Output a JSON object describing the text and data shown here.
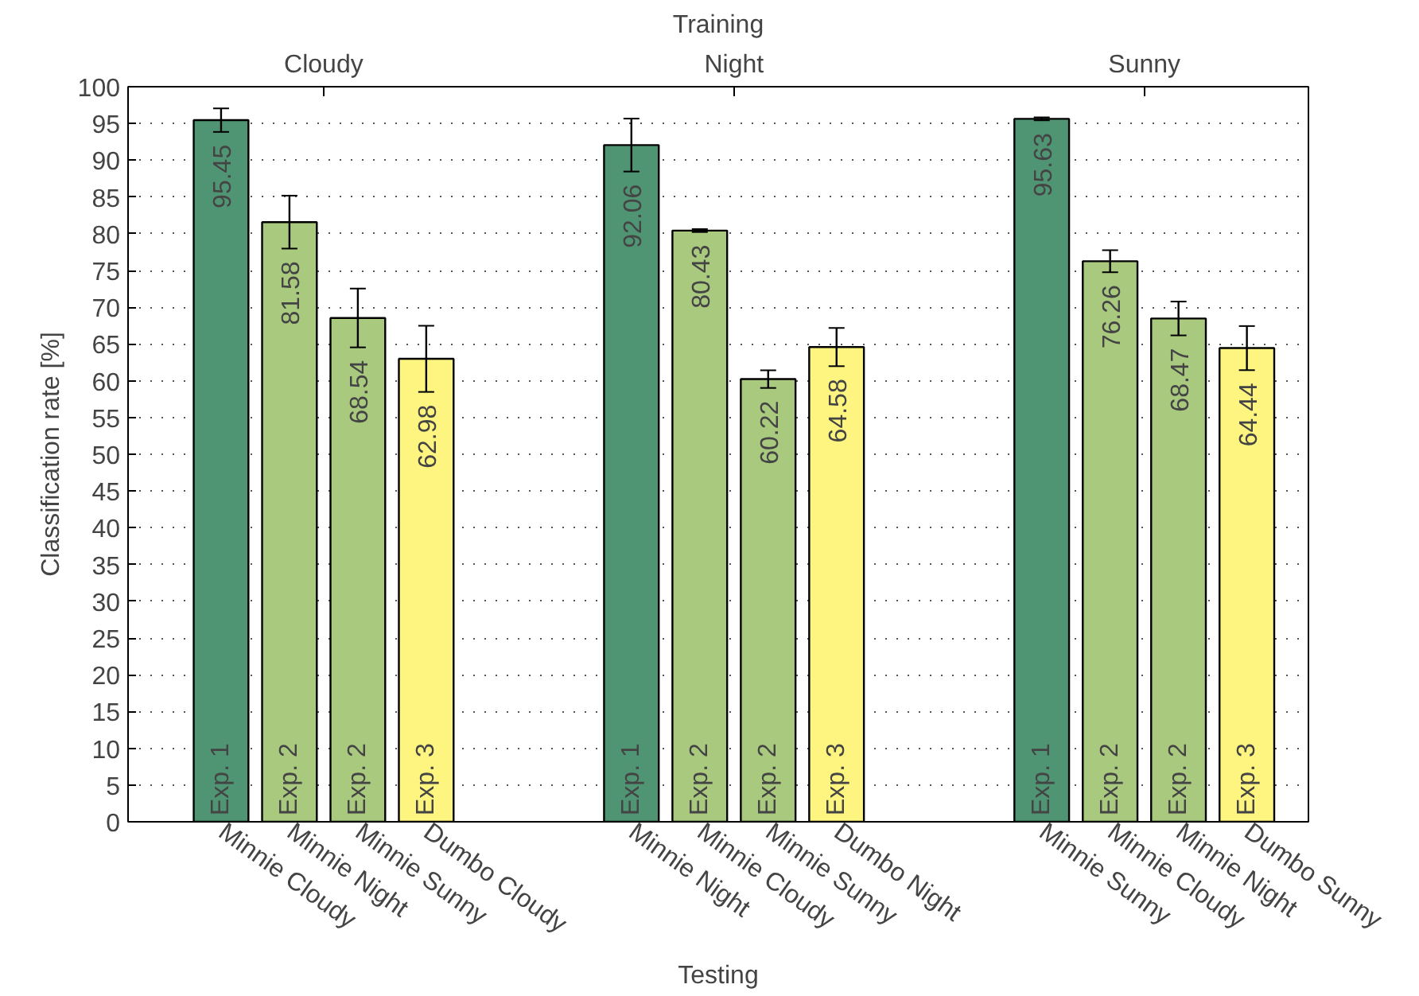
{
  "chart_data": {
    "type": "bar",
    "title": "Training",
    "xlabel": "Testing",
    "ylabel": "Classification rate [%]",
    "categories": [
      "Minnie Cloudy",
      "Minnie Night",
      "Minnie Sunny",
      "Dumbo Cloudy",
      null,
      null,
      "Minnie Night",
      "Minnie Cloudy",
      "Minnie Sunny",
      "Dumbo Night",
      null,
      null,
      "Minnie Sunny",
      "Minnie Cloudy",
      "Minnie Night",
      "Dumbo Sunny"
    ],
    "values": [
      95.45,
      81.58,
      68.54,
      62.98,
      null,
      null,
      92.06,
      80.43,
      60.22,
      64.58,
      null,
      null,
      95.63,
      76.26,
      68.47,
      64.44
    ],
    "errors": [
      1.6,
      3.6,
      4.0,
      4.5,
      null,
      null,
      3.6,
      0.2,
      1.2,
      2.6,
      null,
      null,
      0.2,
      1.5,
      2.3,
      3.0
    ],
    "colors": [
      "#4f9473",
      "#a9c97f",
      "#a9c97f",
      "#fdf57f",
      null,
      null,
      "#4f9473",
      "#a9c97f",
      "#a9c97f",
      "#fdf57f",
      null,
      null,
      "#4f9473",
      "#a9c97f",
      "#a9c97f",
      "#fdf57f"
    ],
    "data_labels": true,
    "annotations": [
      "Cloudy",
      "Night",
      "Sunny",
      "Exp. 1",
      "Exp. 2",
      "Exp. 2",
      "Exp. 3",
      "Exp. 1",
      "Exp. 2",
      "Exp. 2",
      "Exp. 3",
      "Exp. 1",
      "Exp. 2",
      "Exp. 2",
      "Exp. 3"
    ],
    "ylim": [
      0,
      100
    ],
    "yticks": [
      0,
      5,
      10,
      15,
      20,
      25,
      30,
      35,
      40,
      45,
      50,
      55,
      60,
      65,
      70,
      75,
      80,
      85,
      90,
      95,
      100
    ],
    "grid": "y"
  }
}
